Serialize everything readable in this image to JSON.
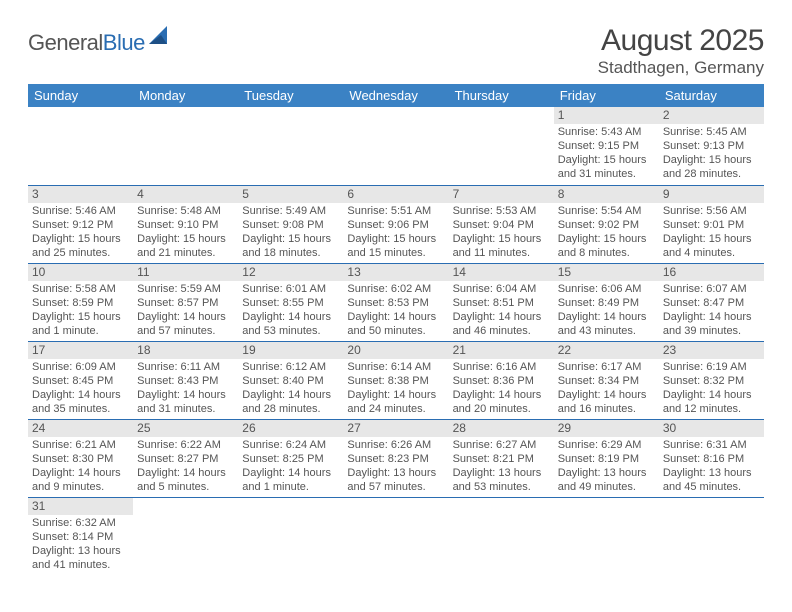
{
  "logo": {
    "text1": "General",
    "text2": "Blue"
  },
  "title": "August 2025",
  "location": "Stadthagen, Germany",
  "colors": {
    "header_bg": "#3b82c4",
    "header_text": "#ffffff",
    "daynum_bg": "#e7e7e7",
    "border": "#2a6db2",
    "text": "#555555",
    "logo_blue": "#2a6db2"
  },
  "weekdays": [
    "Sunday",
    "Monday",
    "Tuesday",
    "Wednesday",
    "Thursday",
    "Friday",
    "Saturday"
  ],
  "weeks": [
    [
      null,
      null,
      null,
      null,
      null,
      {
        "n": "1",
        "sr": "Sunrise: 5:43 AM",
        "ss": "Sunset: 9:15 PM",
        "d1": "Daylight: 15 hours",
        "d2": "and 31 minutes."
      },
      {
        "n": "2",
        "sr": "Sunrise: 5:45 AM",
        "ss": "Sunset: 9:13 PM",
        "d1": "Daylight: 15 hours",
        "d2": "and 28 minutes."
      }
    ],
    [
      {
        "n": "3",
        "sr": "Sunrise: 5:46 AM",
        "ss": "Sunset: 9:12 PM",
        "d1": "Daylight: 15 hours",
        "d2": "and 25 minutes."
      },
      {
        "n": "4",
        "sr": "Sunrise: 5:48 AM",
        "ss": "Sunset: 9:10 PM",
        "d1": "Daylight: 15 hours",
        "d2": "and 21 minutes."
      },
      {
        "n": "5",
        "sr": "Sunrise: 5:49 AM",
        "ss": "Sunset: 9:08 PM",
        "d1": "Daylight: 15 hours",
        "d2": "and 18 minutes."
      },
      {
        "n": "6",
        "sr": "Sunrise: 5:51 AM",
        "ss": "Sunset: 9:06 PM",
        "d1": "Daylight: 15 hours",
        "d2": "and 15 minutes."
      },
      {
        "n": "7",
        "sr": "Sunrise: 5:53 AM",
        "ss": "Sunset: 9:04 PM",
        "d1": "Daylight: 15 hours",
        "d2": "and 11 minutes."
      },
      {
        "n": "8",
        "sr": "Sunrise: 5:54 AM",
        "ss": "Sunset: 9:02 PM",
        "d1": "Daylight: 15 hours",
        "d2": "and 8 minutes."
      },
      {
        "n": "9",
        "sr": "Sunrise: 5:56 AM",
        "ss": "Sunset: 9:01 PM",
        "d1": "Daylight: 15 hours",
        "d2": "and 4 minutes."
      }
    ],
    [
      {
        "n": "10",
        "sr": "Sunrise: 5:58 AM",
        "ss": "Sunset: 8:59 PM",
        "d1": "Daylight: 15 hours",
        "d2": "and 1 minute."
      },
      {
        "n": "11",
        "sr": "Sunrise: 5:59 AM",
        "ss": "Sunset: 8:57 PM",
        "d1": "Daylight: 14 hours",
        "d2": "and 57 minutes."
      },
      {
        "n": "12",
        "sr": "Sunrise: 6:01 AM",
        "ss": "Sunset: 8:55 PM",
        "d1": "Daylight: 14 hours",
        "d2": "and 53 minutes."
      },
      {
        "n": "13",
        "sr": "Sunrise: 6:02 AM",
        "ss": "Sunset: 8:53 PM",
        "d1": "Daylight: 14 hours",
        "d2": "and 50 minutes."
      },
      {
        "n": "14",
        "sr": "Sunrise: 6:04 AM",
        "ss": "Sunset: 8:51 PM",
        "d1": "Daylight: 14 hours",
        "d2": "and 46 minutes."
      },
      {
        "n": "15",
        "sr": "Sunrise: 6:06 AM",
        "ss": "Sunset: 8:49 PM",
        "d1": "Daylight: 14 hours",
        "d2": "and 43 minutes."
      },
      {
        "n": "16",
        "sr": "Sunrise: 6:07 AM",
        "ss": "Sunset: 8:47 PM",
        "d1": "Daylight: 14 hours",
        "d2": "and 39 minutes."
      }
    ],
    [
      {
        "n": "17",
        "sr": "Sunrise: 6:09 AM",
        "ss": "Sunset: 8:45 PM",
        "d1": "Daylight: 14 hours",
        "d2": "and 35 minutes."
      },
      {
        "n": "18",
        "sr": "Sunrise: 6:11 AM",
        "ss": "Sunset: 8:43 PM",
        "d1": "Daylight: 14 hours",
        "d2": "and 31 minutes."
      },
      {
        "n": "19",
        "sr": "Sunrise: 6:12 AM",
        "ss": "Sunset: 8:40 PM",
        "d1": "Daylight: 14 hours",
        "d2": "and 28 minutes."
      },
      {
        "n": "20",
        "sr": "Sunrise: 6:14 AM",
        "ss": "Sunset: 8:38 PM",
        "d1": "Daylight: 14 hours",
        "d2": "and 24 minutes."
      },
      {
        "n": "21",
        "sr": "Sunrise: 6:16 AM",
        "ss": "Sunset: 8:36 PM",
        "d1": "Daylight: 14 hours",
        "d2": "and 20 minutes."
      },
      {
        "n": "22",
        "sr": "Sunrise: 6:17 AM",
        "ss": "Sunset: 8:34 PM",
        "d1": "Daylight: 14 hours",
        "d2": "and 16 minutes."
      },
      {
        "n": "23",
        "sr": "Sunrise: 6:19 AM",
        "ss": "Sunset: 8:32 PM",
        "d1": "Daylight: 14 hours",
        "d2": "and 12 minutes."
      }
    ],
    [
      {
        "n": "24",
        "sr": "Sunrise: 6:21 AM",
        "ss": "Sunset: 8:30 PM",
        "d1": "Daylight: 14 hours",
        "d2": "and 9 minutes."
      },
      {
        "n": "25",
        "sr": "Sunrise: 6:22 AM",
        "ss": "Sunset: 8:27 PM",
        "d1": "Daylight: 14 hours",
        "d2": "and 5 minutes."
      },
      {
        "n": "26",
        "sr": "Sunrise: 6:24 AM",
        "ss": "Sunset: 8:25 PM",
        "d1": "Daylight: 14 hours",
        "d2": "and 1 minute."
      },
      {
        "n": "27",
        "sr": "Sunrise: 6:26 AM",
        "ss": "Sunset: 8:23 PM",
        "d1": "Daylight: 13 hours",
        "d2": "and 57 minutes."
      },
      {
        "n": "28",
        "sr": "Sunrise: 6:27 AM",
        "ss": "Sunset: 8:21 PM",
        "d1": "Daylight: 13 hours",
        "d2": "and 53 minutes."
      },
      {
        "n": "29",
        "sr": "Sunrise: 6:29 AM",
        "ss": "Sunset: 8:19 PM",
        "d1": "Daylight: 13 hours",
        "d2": "and 49 minutes."
      },
      {
        "n": "30",
        "sr": "Sunrise: 6:31 AM",
        "ss": "Sunset: 8:16 PM",
        "d1": "Daylight: 13 hours",
        "d2": "and 45 minutes."
      }
    ],
    [
      {
        "n": "31",
        "sr": "Sunrise: 6:32 AM",
        "ss": "Sunset: 8:14 PM",
        "d1": "Daylight: 13 hours",
        "d2": "and 41 minutes."
      },
      null,
      null,
      null,
      null,
      null,
      null
    ]
  ]
}
